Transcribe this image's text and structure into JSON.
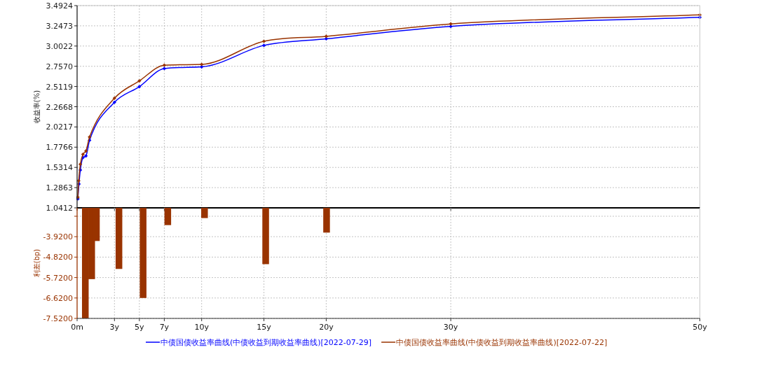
{
  "chart_data": [
    {
      "type": "line",
      "ylabel": "收益率(%)",
      "marker": "diamond",
      "line_style": "solid",
      "grid": true,
      "legend": "bottom",
      "tick_labels": "y",
      "xlim": [
        0,
        50
      ],
      "xticks": [
        {
          "value": 0,
          "label": null
        },
        {
          "value": 3,
          "label": null
        },
        {
          "value": 5,
          "label": null
        },
        {
          "value": 7,
          "label": null
        },
        {
          "value": 10,
          "label": null
        },
        {
          "value": 15,
          "label": null
        },
        {
          "value": 20,
          "label": null
        },
        {
          "value": 30,
          "label": null
        },
        {
          "value": 50,
          "label": null
        }
      ],
      "ylim": [
        1.0412,
        3.4924
      ],
      "yticks": [
        1.0412,
        1.2863,
        1.5314,
        1.7766,
        2.0217,
        2.2668,
        2.5119,
        {
          "value": 2.757,
          "label": "2.7570"
        },
        3.0022,
        3.2473,
        3.4924
      ],
      "series": [
        {
          "name": "中债国债收益率曲线(中债收益到期收益率曲线)[2022-07-29]",
          "color": "#0000ff",
          "x": [
            0.06,
            0.15,
            0.26,
            0.47,
            0.71,
            1.0,
            3,
            5,
            7,
            10,
            15,
            20,
            30,
            50
          ],
          "values": [
            1.15,
            1.33,
            1.5,
            1.65,
            1.67,
            1.86,
            2.32,
            2.51,
            2.73,
            2.75,
            3.01,
            3.09,
            3.24,
            3.35
          ]
        },
        {
          "name": "中债国债收益率曲线(中债收益到期收益率曲线)[2022-07-22]",
          "color": "#993300",
          "x": [
            0.06,
            0.13,
            0.26,
            0.47,
            0.71,
            1.0,
            3,
            5,
            7,
            10,
            15,
            20,
            30,
            50
          ],
          "values": [
            1.17,
            1.37,
            1.57,
            1.69,
            1.73,
            1.9,
            2.37,
            2.58,
            2.77,
            2.78,
            3.06,
            3.12,
            3.27,
            3.38
          ]
        }
      ]
    },
    {
      "type": "bar",
      "ylabel": "利差(bp)",
      "color": "#993300",
      "grid": true,
      "xlim": [
        0,
        50
      ],
      "xticks": [
        {
          "value": 0,
          "label": "0m"
        },
        {
          "value": 3,
          "label": "3y"
        },
        {
          "value": 5,
          "label": "5y"
        },
        {
          "value": 7,
          "label": "7y"
        },
        {
          "value": 10,
          "label": "10y"
        },
        {
          "value": 15,
          "label": "15y"
        },
        {
          "value": 20,
          "label": "20y"
        },
        {
          "value": 30,
          "label": "30y"
        },
        {
          "value": 50,
          "label": "50y"
        }
      ],
      "ylim": [
        -7.52,
        -2.65
      ],
      "yticks": [
        {
          "value": -3.02,
          "label": null
        },
        {
          "value": -3.92,
          "label": "-3.9200"
        },
        {
          "value": -4.82,
          "label": "-4.8200"
        },
        {
          "value": -5.72,
          "label": "-5.7200"
        },
        {
          "value": -6.62,
          "label": "-6.6200"
        },
        {
          "value": -7.52,
          "label": "-7.5200"
        }
      ],
      "x": [
        0.66,
        1.17,
        1.55,
        3.36,
        5.3,
        7.28,
        10.23,
        15.14,
        20.03
      ],
      "values": [
        -7.52,
        -5.79,
        -4.11,
        -5.34,
        -6.62,
        -3.41,
        -3.1,
        -5.13,
        -3.74
      ]
    }
  ]
}
